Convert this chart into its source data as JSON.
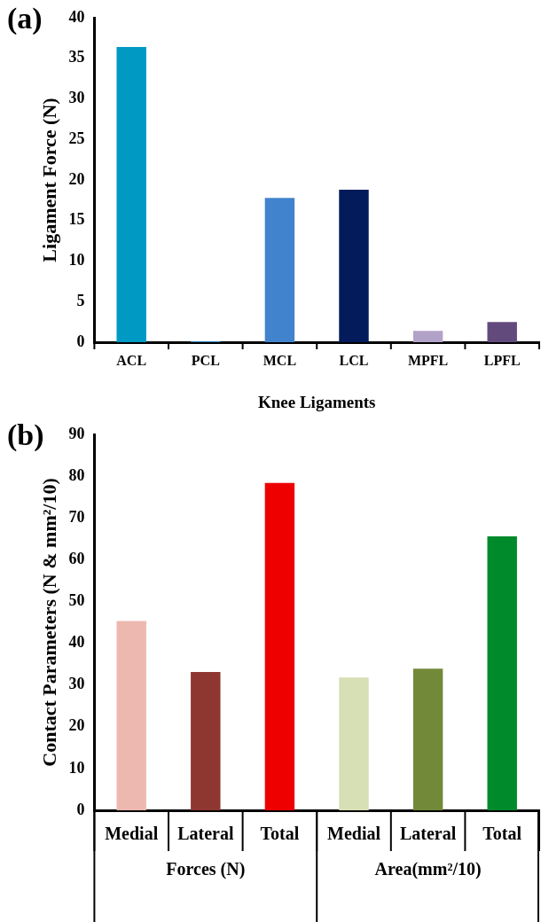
{
  "chart_data": [
    {
      "type": "bar",
      "title": "(a)",
      "xlabel": "Knee Ligaments",
      "ylabel": "Ligament Force (N)",
      "categories": [
        "ACL",
        "PCL",
        "MCL",
        "LCL",
        "MPFL",
        "LPFL"
      ],
      "values": [
        36.4,
        0.1,
        17.8,
        18.8,
        1.4,
        2.5
      ],
      "colors": [
        "#0099c4",
        "#1f7fb8",
        "#4283cd",
        "#031b5b",
        "#b2a2c7",
        "#634a7d"
      ],
      "ylim": [
        0,
        40
      ],
      "yticks": [
        0,
        5,
        10,
        15,
        20,
        25,
        30,
        35,
        40
      ],
      "grid": false,
      "legend": false
    },
    {
      "type": "bar",
      "title": "(b)",
      "ylabel": "Contact Parameters (N & mm²/10)",
      "categories": [
        "Medial",
        "Lateral",
        "Total",
        "Medial",
        "Lateral",
        "Total"
      ],
      "values": [
        45.3,
        33.1,
        78.4,
        31.8,
        33.9,
        65.6
      ],
      "colors": [
        "#edb8b0",
        "#8e3731",
        "#ee0000",
        "#d7dfb5",
        "#728939",
        "#008a2c"
      ],
      "ylim": [
        0,
        90
      ],
      "yticks": [
        0,
        10,
        20,
        30,
        40,
        50,
        60,
        70,
        80,
        90
      ],
      "annotations": [
        "Forces (N)",
        "Area(mm²/10)"
      ],
      "grid": false,
      "legend": false
    }
  ]
}
